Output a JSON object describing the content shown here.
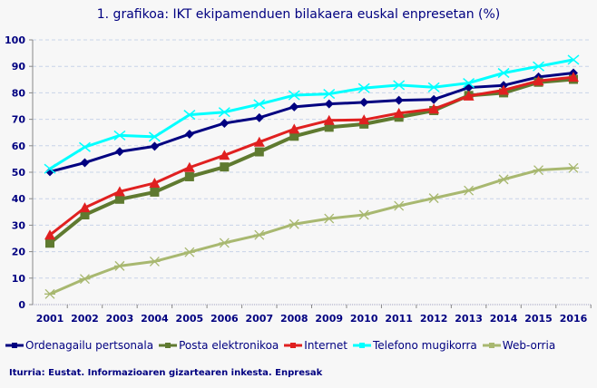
{
  "chart_data": {
    "type": "line",
    "title": "1. grafikoa: IKT ekipamenduen bilakaera euskal enpresetan (%)",
    "xlabel": "",
    "ylabel": "",
    "ylim": [
      0,
      100
    ],
    "yticks": [
      0,
      10,
      20,
      30,
      40,
      50,
      60,
      70,
      80,
      90,
      100
    ],
    "grid": true,
    "legend_position": "bottom",
    "categories": [
      "2001",
      "2002",
      "2003",
      "2004",
      "2005",
      "2006",
      "2007",
      "2008",
      "2009",
      "2010",
      "2011",
      "2012",
      "2013",
      "2014",
      "2015",
      "2016"
    ],
    "series": [
      {
        "name": "Ordenagailu pertsonala",
        "color": "#000080",
        "marker": "diamond",
        "values": [
          50.2,
          53.6,
          57.8,
          59.8,
          64.4,
          68.5,
          70.6,
          74.7,
          75.8,
          76.4,
          77.2,
          77.5,
          82.0,
          82.8,
          86.0,
          87.5
        ]
      },
      {
        "name": "Posta elektronikoa",
        "color": "#5f7a30",
        "marker": "square",
        "values": [
          23.2,
          33.9,
          39.8,
          42.5,
          48.3,
          52.0,
          57.7,
          63.6,
          67.0,
          68.2,
          70.8,
          73.3,
          79.0,
          80.0,
          84.0,
          85.1
        ]
      },
      {
        "name": "Internet",
        "color": "#e02020",
        "marker": "triangle",
        "values": [
          26.3,
          36.6,
          42.7,
          45.9,
          51.8,
          56.4,
          61.4,
          66.3,
          69.6,
          69.8,
          72.3,
          73.9,
          78.8,
          81.0,
          84.5,
          85.9
        ]
      },
      {
        "name": "Telefono mugikorra",
        "color": "#00ffff",
        "marker": "x",
        "values": [
          51.3,
          59.5,
          63.9,
          63.4,
          71.7,
          72.7,
          75.7,
          79.1,
          79.6,
          81.8,
          82.9,
          82.1,
          83.7,
          87.5,
          90.0,
          92.5
        ]
      },
      {
        "name": "Web-orria",
        "color": "#a8b870",
        "marker": "star",
        "values": [
          4.0,
          9.7,
          14.6,
          16.3,
          19.8,
          23.3,
          26.3,
          30.4,
          32.5,
          33.9,
          37.3,
          40.2,
          43.1,
          47.3,
          50.8,
          51.6
        ]
      }
    ],
    "source": "Iturria: Eustat. Informazioaren gizartearen inkesta. Enpresak"
  }
}
